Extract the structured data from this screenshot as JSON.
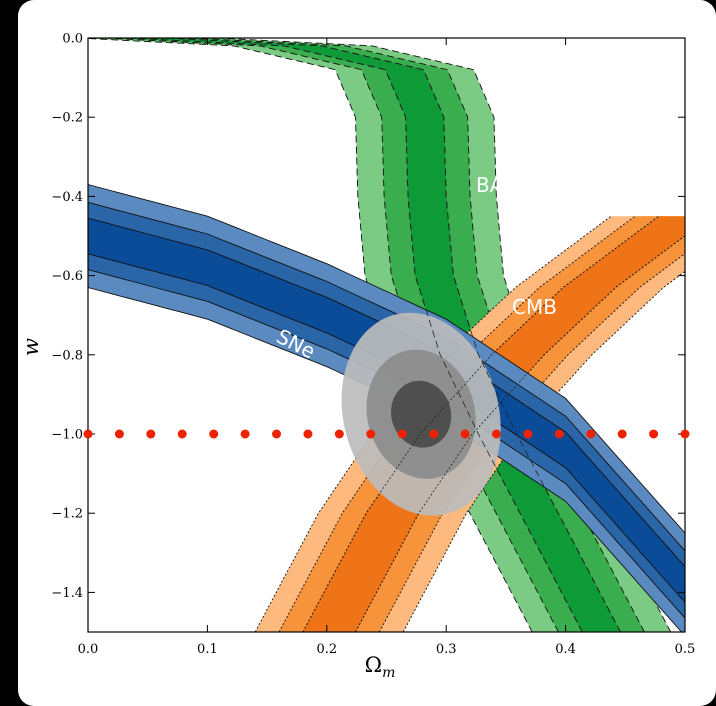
{
  "chart_data": {
    "type": "contour",
    "title": "",
    "xlabel": "Ω",
    "xlabel_sub": "m",
    "ylabel": "w",
    "xlim": [
      0.0,
      0.5
    ],
    "ylim": [
      -1.5,
      0.0
    ],
    "x_ticks": [
      0.0,
      0.1,
      0.2,
      0.3,
      0.4,
      0.5
    ],
    "x_tick_labels": [
      "0.0",
      "0.1",
      "0.2",
      "0.3",
      "0.4",
      "0.5"
    ],
    "y_ticks": [
      0.0,
      -0.2,
      -0.4,
      -0.6,
      -0.8,
      -1.0,
      -1.2,
      -1.4
    ],
    "y_tick_labels": [
      "0.0",
      "−0.2",
      "−0.4",
      "−0.6",
      "−0.8",
      "−1.0",
      "−1.2",
      "−1.4"
    ],
    "grid": false,
    "legend": "none",
    "band_labels": {
      "sne": "SNe",
      "bao": "BAO",
      "cmb": "CMB"
    },
    "colors": {
      "sne": [
        "#5a8ac0",
        "#2a65a8",
        "#0a4c98"
      ],
      "bao": [
        "#7ccb84",
        "#3aae4e",
        "#0e9a36"
      ],
      "cmb": [
        "#fdb97e",
        "#f7933a",
        "#ef7417"
      ],
      "combined": [
        "#bcbcbc",
        "#8c8c8c",
        "#4a4a4a"
      ],
      "lcdm_points": "#ee2200"
    },
    "series": [
      {
        "name": "SNe",
        "kind": "band",
        "center_curve": [
          [
            0.0,
            -0.5
          ],
          [
            0.1,
            -0.58
          ],
          [
            0.2,
            -0.7
          ],
          [
            0.3,
            -0.84
          ],
          [
            0.4,
            -1.04
          ],
          [
            0.5,
            -1.38
          ]
        ],
        "half_widths_w": [
          0.045,
          0.085,
          0.13
        ]
      },
      {
        "name": "BAO",
        "kind": "band",
        "center_curve": [
          [
            0.43,
            -1.5
          ],
          [
            0.343,
            -1.0
          ],
          [
            0.311,
            -0.8
          ],
          [
            0.29,
            -0.6
          ],
          [
            0.284,
            -0.4
          ],
          [
            0.282,
            -0.2
          ],
          [
            0.265,
            -0.08
          ],
          [
            0.18,
            -0.02
          ],
          [
            0.05,
            0.0
          ]
        ],
        "half_widths_om": [
          0.016,
          0.036,
          0.058
        ]
      },
      {
        "name": "CMB",
        "kind": "band",
        "center_curve": [
          [
            0.202,
            -1.5
          ],
          [
            0.255,
            -1.2
          ],
          [
            0.3,
            -1.0
          ],
          [
            0.36,
            -0.8
          ],
          [
            0.42,
            -0.63
          ],
          [
            0.5,
            -0.45
          ]
        ],
        "half_widths_om": [
          0.022,
          0.042,
          0.062
        ]
      },
      {
        "name": "SNe+BAO+CMB",
        "kind": "ellipses",
        "center": [
          0.279,
          -0.95
        ],
        "angle_deg": -15,
        "semi_axes_om": [
          0.025,
          0.045,
          0.065
        ],
        "semi_axes_w": [
          0.085,
          0.165,
          0.26
        ]
      },
      {
        "name": "LCDM",
        "kind": "points",
        "x": [
          0.0,
          0.0263,
          0.0526,
          0.0789,
          0.1053,
          0.1316,
          0.1579,
          0.1842,
          0.2105,
          0.2368,
          0.2632,
          0.2895,
          0.3158,
          0.3421,
          0.3684,
          0.3947,
          0.4211,
          0.4474,
          0.4737,
          0.5
        ],
        "y": [
          -1.0,
          -1.0,
          -1.0,
          -1.0,
          -1.0,
          -1.0,
          -1.0,
          -1.0,
          -1.0,
          -1.0,
          -1.0,
          -1.0,
          -1.0,
          -1.0,
          -1.0,
          -1.0,
          -1.0,
          -1.0,
          -1.0,
          -1.0
        ]
      }
    ]
  }
}
